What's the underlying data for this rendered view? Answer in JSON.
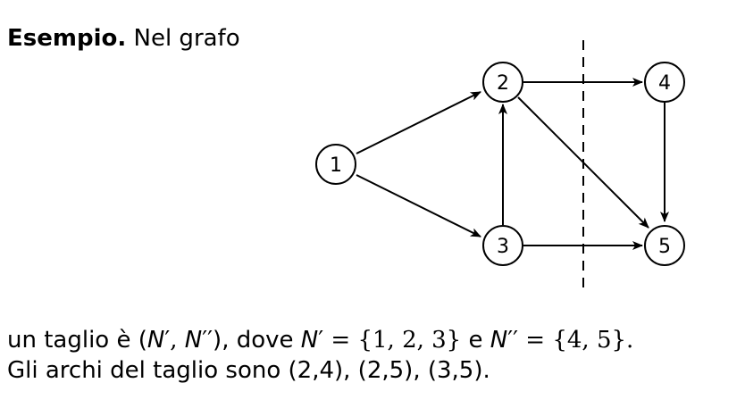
{
  "heading": {
    "bold": "Esempio.",
    "text": "Nel grafo"
  },
  "graph": {
    "nodes": [
      {
        "id": "1",
        "label": "1"
      },
      {
        "id": "2",
        "label": "2"
      },
      {
        "id": "3",
        "label": "3"
      },
      {
        "id": "4",
        "label": "4"
      },
      {
        "id": "5",
        "label": "5"
      }
    ],
    "edges": [
      {
        "from": "1",
        "to": "2"
      },
      {
        "from": "1",
        "to": "3"
      },
      {
        "from": "3",
        "to": "2"
      },
      {
        "from": "2",
        "to": "4"
      },
      {
        "from": "2",
        "to": "5"
      },
      {
        "from": "4",
        "to": "5"
      },
      {
        "from": "3",
        "to": "5"
      }
    ],
    "cut": {
      "style": "dashed"
    }
  },
  "caption": {
    "line1": {
      "p1": "un taglio è (",
      "n1": "N",
      "prime1": "′",
      "comma": ", ",
      "n2": "N",
      "prime2": "′′",
      "p2": "), dove ",
      "n3": "N",
      "prime3": "′",
      "eq1": " = {1, 2, 3}",
      "and": " e ",
      "n4": "N",
      "prime4": "′′",
      "eq2": " = {4, 5}."
    },
    "line2": "Gli archi del taglio sono (2,4), (2,5), (3,5)."
  }
}
